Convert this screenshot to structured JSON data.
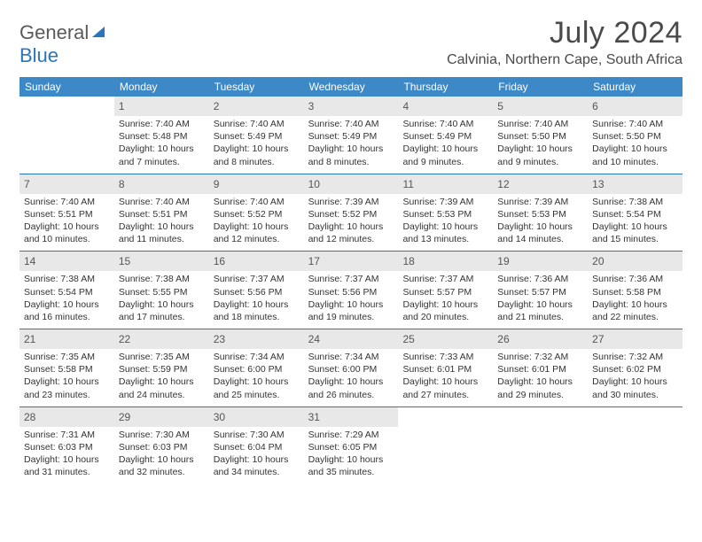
{
  "logo": {
    "text1": "General",
    "text2": "Blue"
  },
  "title": "July 2024",
  "location": "Calvinia, Northern Cape, South Africa",
  "colors": {
    "header_bg": "#3d88c7",
    "accent": "#2976bb",
    "date_band": "#e8e8e8",
    "text_dark": "#333333",
    "text_mid": "#4a4a4a"
  },
  "day_names": [
    "Sunday",
    "Monday",
    "Tuesday",
    "Wednesday",
    "Thursday",
    "Friday",
    "Saturday"
  ],
  "weeks": [
    [
      null,
      {
        "d": "1",
        "sr": "7:40 AM",
        "ss": "5:48 PM",
        "dl": "10 hours and 7 minutes."
      },
      {
        "d": "2",
        "sr": "7:40 AM",
        "ss": "5:49 PM",
        "dl": "10 hours and 8 minutes."
      },
      {
        "d": "3",
        "sr": "7:40 AM",
        "ss": "5:49 PM",
        "dl": "10 hours and 8 minutes."
      },
      {
        "d": "4",
        "sr": "7:40 AM",
        "ss": "5:49 PM",
        "dl": "10 hours and 9 minutes."
      },
      {
        "d": "5",
        "sr": "7:40 AM",
        "ss": "5:50 PM",
        "dl": "10 hours and 9 minutes."
      },
      {
        "d": "6",
        "sr": "7:40 AM",
        "ss": "5:50 PM",
        "dl": "10 hours and 10 minutes."
      }
    ],
    [
      {
        "d": "7",
        "sr": "7:40 AM",
        "ss": "5:51 PM",
        "dl": "10 hours and 10 minutes."
      },
      {
        "d": "8",
        "sr": "7:40 AM",
        "ss": "5:51 PM",
        "dl": "10 hours and 11 minutes."
      },
      {
        "d": "9",
        "sr": "7:40 AM",
        "ss": "5:52 PM",
        "dl": "10 hours and 12 minutes."
      },
      {
        "d": "10",
        "sr": "7:39 AM",
        "ss": "5:52 PM",
        "dl": "10 hours and 12 minutes."
      },
      {
        "d": "11",
        "sr": "7:39 AM",
        "ss": "5:53 PM",
        "dl": "10 hours and 13 minutes."
      },
      {
        "d": "12",
        "sr": "7:39 AM",
        "ss": "5:53 PM",
        "dl": "10 hours and 14 minutes."
      },
      {
        "d": "13",
        "sr": "7:38 AM",
        "ss": "5:54 PM",
        "dl": "10 hours and 15 minutes."
      }
    ],
    [
      {
        "d": "14",
        "sr": "7:38 AM",
        "ss": "5:54 PM",
        "dl": "10 hours and 16 minutes."
      },
      {
        "d": "15",
        "sr": "7:38 AM",
        "ss": "5:55 PM",
        "dl": "10 hours and 17 minutes."
      },
      {
        "d": "16",
        "sr": "7:37 AM",
        "ss": "5:56 PM",
        "dl": "10 hours and 18 minutes."
      },
      {
        "d": "17",
        "sr": "7:37 AM",
        "ss": "5:56 PM",
        "dl": "10 hours and 19 minutes."
      },
      {
        "d": "18",
        "sr": "7:37 AM",
        "ss": "5:57 PM",
        "dl": "10 hours and 20 minutes."
      },
      {
        "d": "19",
        "sr": "7:36 AM",
        "ss": "5:57 PM",
        "dl": "10 hours and 21 minutes."
      },
      {
        "d": "20",
        "sr": "7:36 AM",
        "ss": "5:58 PM",
        "dl": "10 hours and 22 minutes."
      }
    ],
    [
      {
        "d": "21",
        "sr": "7:35 AM",
        "ss": "5:58 PM",
        "dl": "10 hours and 23 minutes."
      },
      {
        "d": "22",
        "sr": "7:35 AM",
        "ss": "5:59 PM",
        "dl": "10 hours and 24 minutes."
      },
      {
        "d": "23",
        "sr": "7:34 AM",
        "ss": "6:00 PM",
        "dl": "10 hours and 25 minutes."
      },
      {
        "d": "24",
        "sr": "7:34 AM",
        "ss": "6:00 PM",
        "dl": "10 hours and 26 minutes."
      },
      {
        "d": "25",
        "sr": "7:33 AM",
        "ss": "6:01 PM",
        "dl": "10 hours and 27 minutes."
      },
      {
        "d": "26",
        "sr": "7:32 AM",
        "ss": "6:01 PM",
        "dl": "10 hours and 29 minutes."
      },
      {
        "d": "27",
        "sr": "7:32 AM",
        "ss": "6:02 PM",
        "dl": "10 hours and 30 minutes."
      }
    ],
    [
      {
        "d": "28",
        "sr": "7:31 AM",
        "ss": "6:03 PM",
        "dl": "10 hours and 31 minutes."
      },
      {
        "d": "29",
        "sr": "7:30 AM",
        "ss": "6:03 PM",
        "dl": "10 hours and 32 minutes."
      },
      {
        "d": "30",
        "sr": "7:30 AM",
        "ss": "6:04 PM",
        "dl": "10 hours and 34 minutes."
      },
      {
        "d": "31",
        "sr": "7:29 AM",
        "ss": "6:05 PM",
        "dl": "10 hours and 35 minutes."
      },
      null,
      null,
      null
    ]
  ],
  "labels": {
    "sunrise": "Sunrise:",
    "sunset": "Sunset:",
    "daylight": "Daylight:"
  }
}
